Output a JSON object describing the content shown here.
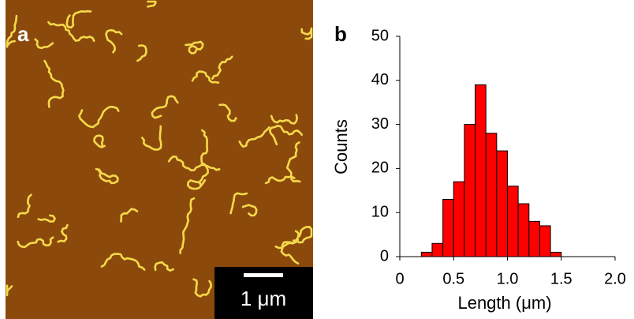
{
  "image": {
    "panel_label": "a",
    "scale_bar_label": "1 μm"
  },
  "chart_data": {
    "type": "histogram",
    "panel_label": "b",
    "x_label": "Length (μm)",
    "y_label": "Counts",
    "bins": [
      0.2,
      0.3,
      0.4,
      0.5,
      0.6,
      0.7,
      0.8,
      0.9,
      1.0,
      1.1,
      1.2,
      1.3,
      1.4,
      1.5
    ],
    "counts": [
      1,
      3,
      13,
      17,
      30,
      39,
      28,
      24,
      16,
      12,
      8,
      7,
      1
    ],
    "color": "#ff0000",
    "xlim": [
      0,
      2
    ],
    "xticks": [
      0,
      0.5,
      {
        "value": 1,
        "label": "1.0"
      },
      1.5,
      {
        "value": 2,
        "label": "2.0"
      }
    ],
    "ylim": [
      0,
      50
    ],
    "yticks": [
      0,
      10,
      20,
      30,
      40,
      50
    ]
  }
}
